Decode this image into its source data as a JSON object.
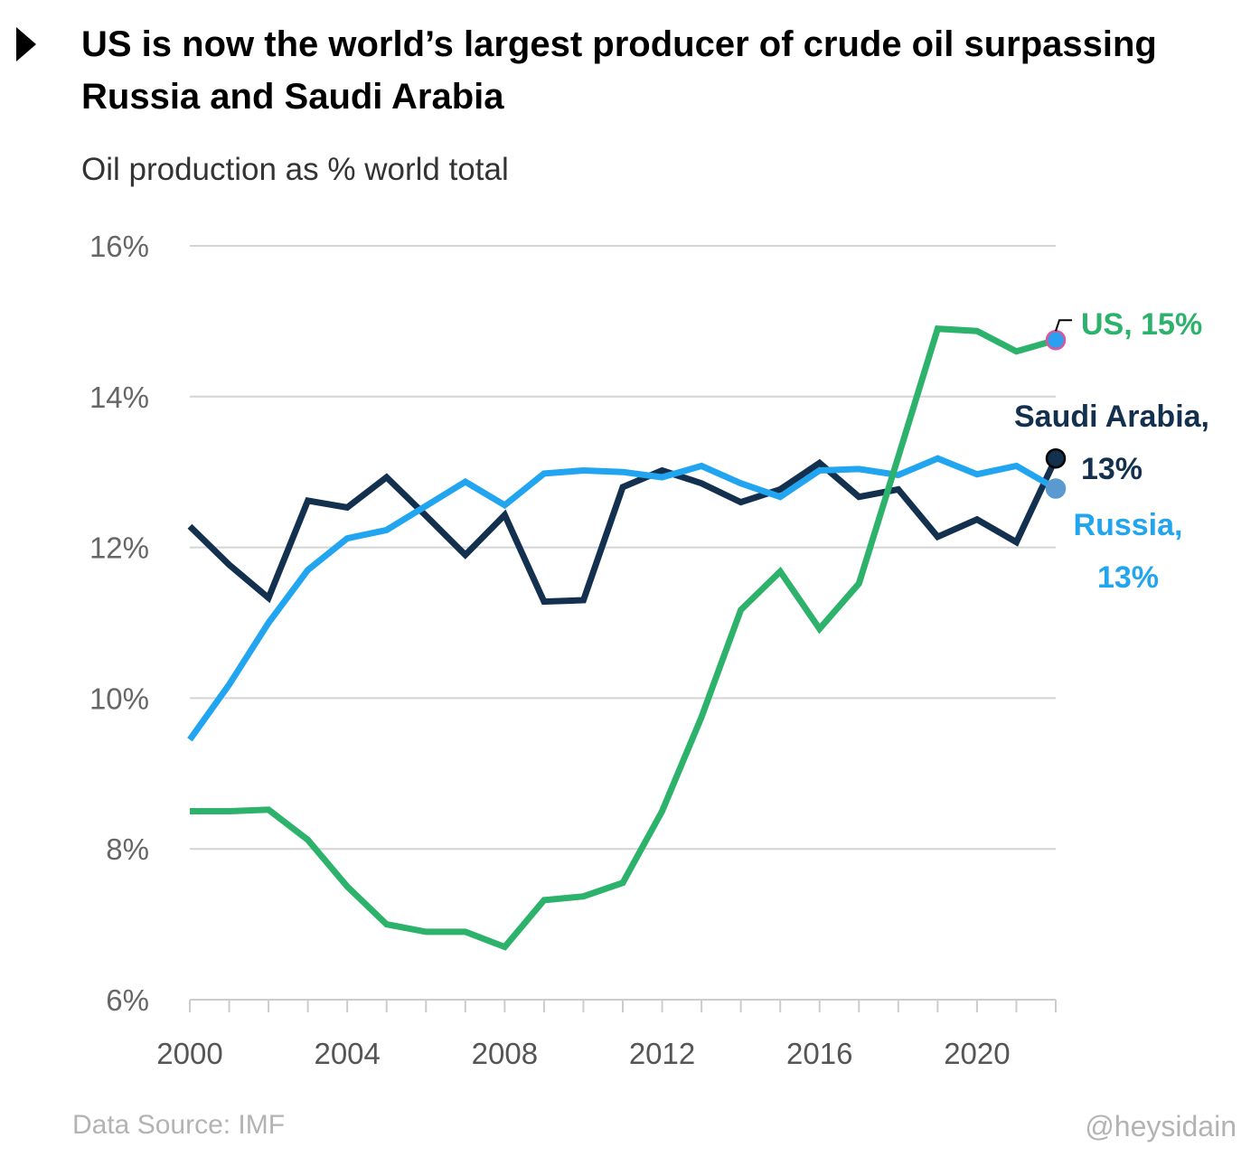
{
  "header": {
    "title": "US is now the world’s largest producer of crude oil surpassing Russia and Saudi Arabia",
    "subtitle": "Oil production as % world total"
  },
  "footer": {
    "source": "Data Source: IMF",
    "credit": "@heysidain"
  },
  "chart_data": {
    "type": "line",
    "ylim": [
      6,
      16
    ],
    "xlim": [
      2000,
      2022
    ],
    "y_ticks": [
      6,
      8,
      10,
      12,
      14,
      16
    ],
    "y_tick_labels": [
      "6%",
      "8%",
      "10%",
      "12%",
      "14%",
      "16%"
    ],
    "x_tick_labels": [
      "2000",
      "2004",
      "2008",
      "2012",
      "2016",
      "2020"
    ],
    "x_tick_values": [
      2000,
      2004,
      2008,
      2012,
      2016,
      2020
    ],
    "grid": "horizontal",
    "legend": "none",
    "x": [
      2000,
      2001,
      2002,
      2003,
      2004,
      2005,
      2006,
      2007,
      2008,
      2009,
      2010,
      2011,
      2012,
      2013,
      2014,
      2015,
      2016,
      2017,
      2018,
      2019,
      2020,
      2021,
      2022
    ],
    "series": [
      {
        "name": "US",
        "label_lines": [
          "US, 15%"
        ],
        "color": "#2db26b",
        "end_marker_fill": "#2b9ff0",
        "end_marker_stroke": "#e0559a",
        "values": [
          8.5,
          8.5,
          8.52,
          8.12,
          7.5,
          7.0,
          6.9,
          6.9,
          6.7,
          7.32,
          7.37,
          7.55,
          8.5,
          9.75,
          11.17,
          11.68,
          10.92,
          11.52,
          13.2,
          14.9,
          14.87,
          14.6,
          14.75
        ]
      },
      {
        "name": "Saudi Arabia",
        "label_lines": [
          "Saudi Arabia,",
          "13%"
        ],
        "color": "#13304f",
        "end_marker_fill": "#13304f",
        "end_marker_stroke": "#000000",
        "values": [
          12.28,
          11.77,
          11.33,
          12.62,
          12.53,
          12.93,
          12.42,
          11.9,
          12.43,
          11.28,
          11.3,
          12.8,
          13.02,
          12.85,
          12.6,
          12.77,
          13.12,
          12.67,
          12.77,
          12.14,
          12.37,
          12.07,
          13.18
        ]
      },
      {
        "name": "Russia",
        "label_lines": [
          "Russia,",
          "13%"
        ],
        "color": "#22a5f0",
        "end_marker_fill": "#5b9ad0",
        "end_marker_stroke": "#5b9ad0",
        "values": [
          9.45,
          10.18,
          11.0,
          11.7,
          12.12,
          12.23,
          12.55,
          12.87,
          12.56,
          12.98,
          13.02,
          13.0,
          12.93,
          13.08,
          12.85,
          12.67,
          13.02,
          13.04,
          12.96,
          13.18,
          12.97,
          13.08,
          12.78
        ]
      }
    ]
  }
}
